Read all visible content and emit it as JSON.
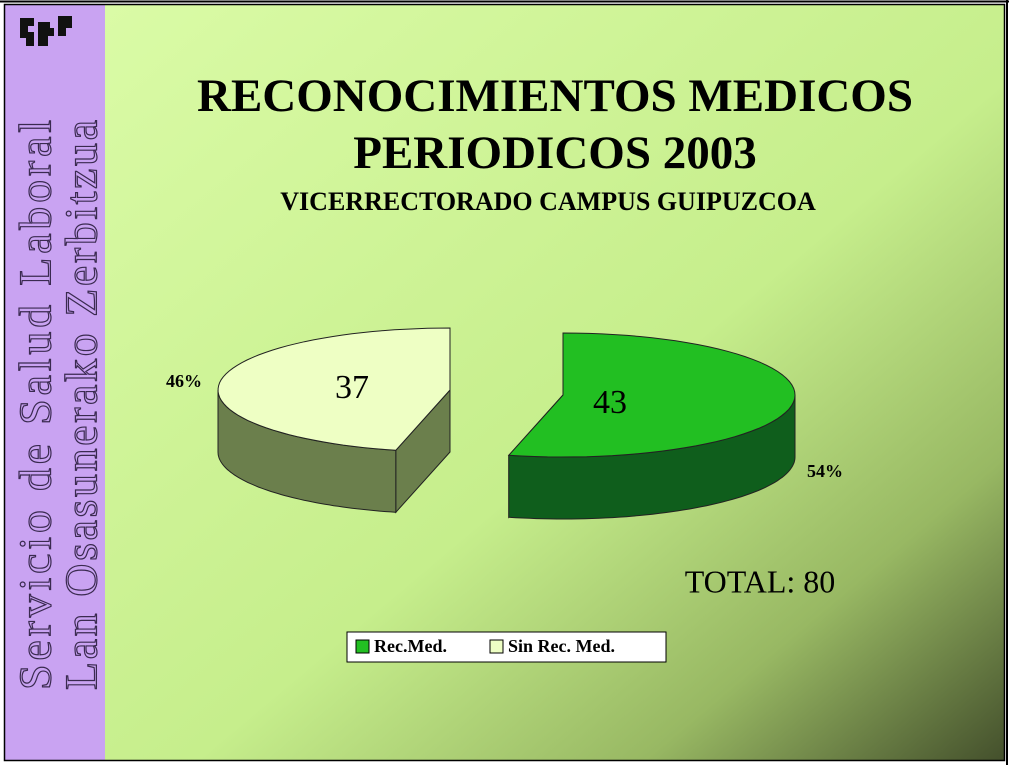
{
  "sidebar": {
    "line1": "Servicio de Salud Laboral",
    "line2": "Lan Osasunerako Zerbitzua"
  },
  "chart_data": {
    "type": "pie3d",
    "title": [
      "RECONOCIMIENTOS MEDICOS",
      "PERIODICOS 2003"
    ],
    "subtitle": "VICERRECTORADO CAMPUS GUIPUZCOA",
    "categories": [
      "Rec.Med.",
      "Sin Rec. Med."
    ],
    "values": [
      43,
      37
    ],
    "percent_labels": [
      "54%",
      "46%"
    ],
    "colors": [
      "#22bf22",
      "#eeffc4"
    ],
    "side_colors": [
      "#0f5e1c",
      "#6b7f4c"
    ],
    "annotation": "TOTAL: 80",
    "legend": "bottom"
  }
}
